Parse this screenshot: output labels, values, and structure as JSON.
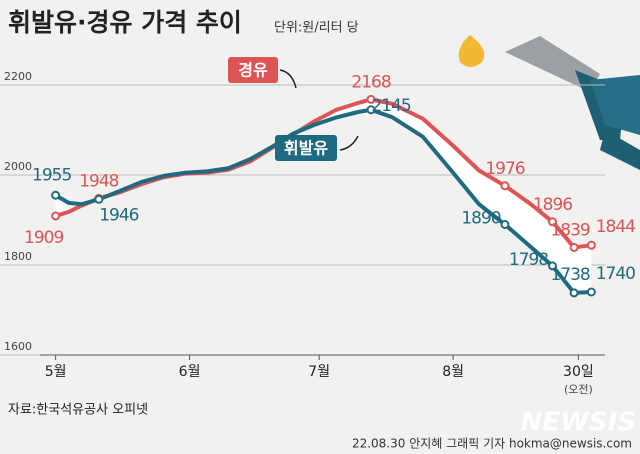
{
  "chart_data": {
    "type": "line",
    "title": "휘발유·경유 가격 추이",
    "subtitle": "단위:원/리터 당",
    "x": [
      0,
      3,
      6,
      10,
      15,
      20,
      25,
      30,
      35,
      40,
      45,
      50,
      55,
      60,
      65,
      70,
      73,
      78,
      85,
      92,
      98,
      104,
      110,
      115,
      120,
      124
    ],
    "xlim": [
      -2,
      126
    ],
    "xticks": [
      {
        "value": 0,
        "label": "5월"
      },
      {
        "value": 31,
        "label": "6월"
      },
      {
        "value": 61,
        "label": "7월"
      },
      {
        "value": 92,
        "label": "8월"
      },
      {
        "value": 121,
        "label": "30일"
      }
    ],
    "xtick_note": "(오전)",
    "ylim": [
      1600,
      2200
    ],
    "yticks": [
      1600,
      1800,
      2000,
      2200
    ],
    "grid": true,
    "series": [
      {
        "name": "경유",
        "color": "#dd5454",
        "values": [
          1909,
          1918,
          1932,
          1948,
          1962,
          1980,
          1995,
          2003,
          2005,
          2012,
          2030,
          2060,
          2090,
          2120,
          2145,
          2160,
          2168,
          2158,
          2125,
          2065,
          2010,
          1976,
          1935,
          1896,
          1839,
          1844
        ],
        "value_labels": [
          "1909",
          null,
          null,
          "1948",
          null,
          null,
          null,
          null,
          null,
          null,
          null,
          null,
          null,
          null,
          null,
          null,
          "2168",
          null,
          null,
          null,
          null,
          "1976",
          null,
          "1896",
          "1839",
          "1844"
        ]
      },
      {
        "name": "휘발유",
        "color": "#1f6a80",
        "values": [
          1955,
          1938,
          1935,
          1946,
          1965,
          1985,
          1998,
          2005,
          2008,
          2015,
          2035,
          2062,
          2092,
          2112,
          2128,
          2140,
          2145,
          2128,
          2085,
          2005,
          1935,
          1890,
          1840,
          1798,
          1738,
          1740
        ],
        "value_labels": [
          "1955",
          null,
          null,
          "1946",
          null,
          null,
          null,
          null,
          null,
          null,
          null,
          null,
          null,
          null,
          null,
          null,
          "2145",
          null,
          null,
          null,
          null,
          "1890",
          null,
          "1798",
          "1738",
          "1740"
        ]
      }
    ],
    "source": "자료:한국석유공사 오피넷",
    "credit": "22.08.30 안지혜 그래픽 기자 hokma@newsis.com",
    "watermark": "NEWSIS"
  }
}
